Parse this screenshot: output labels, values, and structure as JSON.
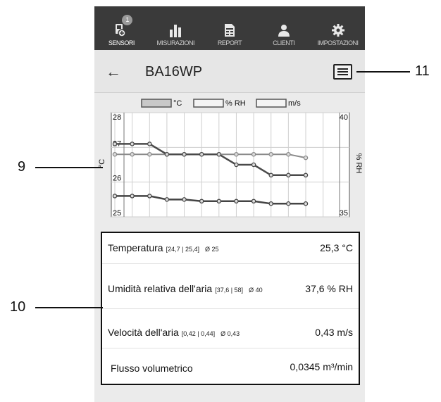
{
  "nav": {
    "items": [
      {
        "label": "SENSORI",
        "icon": "sensor-icon",
        "badge": "1",
        "active": true
      },
      {
        "label": "MISURAZIONI",
        "icon": "bar-chart-icon"
      },
      {
        "label": "REPORT",
        "icon": "report-icon"
      },
      {
        "label": "CLIENTI",
        "icon": "clients-icon"
      },
      {
        "label": "IMPOSTAZIONI",
        "icon": "gear-icon"
      }
    ]
  },
  "appbar": {
    "back_symbol": "←",
    "title": "BA16WP",
    "menu_icon": "hamburger-menu-icon"
  },
  "chart_data": {
    "type": "line",
    "legend": [
      "°C",
      "% RH",
      "m/s"
    ],
    "legend_position": "top",
    "ylabel_left": "°C",
    "ylabel_right": "% RH",
    "y_left_ticks": [
      "28",
      "27",
      "26",
      "25"
    ],
    "y_right_ticks": [
      "40",
      "35"
    ],
    "ylim_left": [
      25,
      28
    ],
    "ylim_right": [
      35,
      40
    ],
    "grid": true,
    "series": [
      {
        "values": [
          26.8,
          26.8,
          26.8,
          26.8,
          26.8,
          26.8,
          26.8,
          26.8,
          26.8,
          26.8,
          26.8,
          26.7
        ],
        "color": "#8a8a8a"
      },
      {
        "values": [
          27.1,
          27.1,
          27.1,
          26.8,
          26.8,
          26.8,
          26.8,
          26.5,
          26.5,
          26.2,
          26.2,
          26.2
        ],
        "color": "#4a4a4a"
      },
      {
        "values": [
          25.6,
          25.6,
          25.6,
          25.5,
          25.5,
          25.45,
          25.45,
          25.45,
          25.45,
          25.38,
          25.38,
          25.38
        ],
        "color": "#444444"
      }
    ]
  },
  "readings": {
    "rows": [
      {
        "label": "Temperatura",
        "range": "[24,7 | 25,4]",
        "avg": "Ø 25",
        "value": "25,3 °C"
      },
      {
        "label": "Umidità relativa dell'aria",
        "range": "[37,6 | 58]",
        "avg": "Ø 40",
        "value": "37,6 % RH"
      },
      {
        "label": "Velocità dell'aria",
        "range": "[0,42 | 0,44]",
        "avg": "Ø 0,43",
        "value": "0,43 m/s"
      },
      {
        "label": "Flusso volumetrico",
        "range": "",
        "avg": "",
        "value": "0,0345 m³/min"
      }
    ]
  },
  "callouts": [
    "9",
    "10",
    "11"
  ]
}
